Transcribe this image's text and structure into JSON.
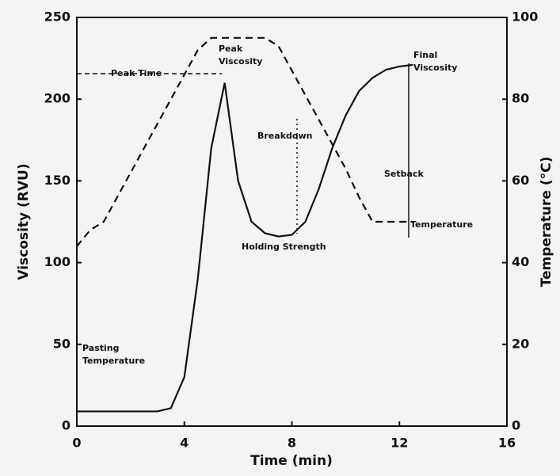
{
  "chart_data": {
    "type": "line",
    "xlabel": "Time (min)",
    "ylabel": "Viscosity (RVU)",
    "y2label": "Temperature (°C)",
    "x": [
      0,
      0.5,
      1,
      1.5,
      2,
      2.5,
      3,
      3.5,
      4,
      4.5,
      5,
      5.5,
      6,
      6.5,
      7,
      7.5,
      8,
      8.5,
      9,
      9.5,
      10,
      10.5,
      11,
      11.5,
      12,
      12.5
    ],
    "series": [
      {
        "name": "Viscosity",
        "color": "#111111",
        "dash": false,
        "values": [
          9,
          9,
          9,
          9,
          9,
          9,
          9,
          11,
          30,
          90,
          170,
          210,
          150,
          125,
          118,
          116,
          117,
          125,
          145,
          170,
          190,
          205,
          213,
          218,
          220,
          221
        ]
      },
      {
        "name": "Temperature",
        "color": "#111111",
        "dash": true,
        "axis": "y2",
        "values": [
          44,
          48,
          50,
          56,
          62,
          68,
          74,
          80,
          86,
          92,
          95,
          95,
          95,
          95,
          95,
          93,
          87,
          81,
          75,
          69,
          63,
          56,
          50,
          50,
          50,
          50
        ]
      }
    ],
    "xlim": [
      0,
      16
    ],
    "xticks": [
      0,
      4,
      8,
      12,
      16
    ],
    "ylim": [
      0,
      250
    ],
    "yticks": [
      0,
      50,
      100,
      150,
      200,
      250
    ],
    "y2lim": [
      0,
      100
    ],
    "y2ticks": [
      0,
      20,
      40,
      60,
      80,
      100
    ],
    "annotations": [
      [
        "Peak Time"
      ],
      [
        "Peak",
        "Viscosity"
      ],
      [
        "Breakdown"
      ],
      [
        "Final",
        "Viscosity"
      ],
      [
        "Setback"
      ],
      [
        "Temperature"
      ],
      [
        "Holding Strength"
      ],
      [
        "Pasting",
        "Temperature"
      ]
    ]
  }
}
